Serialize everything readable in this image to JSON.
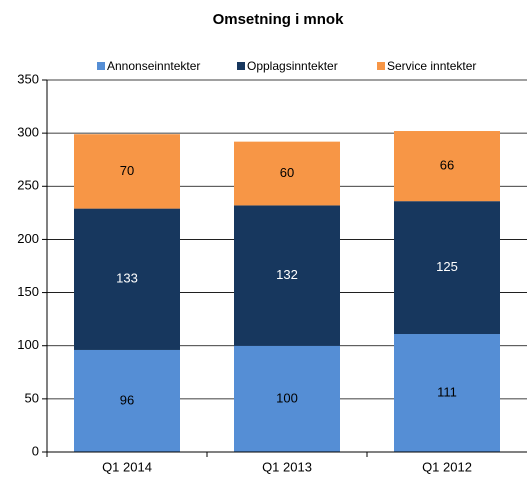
{
  "chart_data": {
    "type": "bar",
    "stacked": true,
    "title": "Omsetning i mnok",
    "categories": [
      "Q1 2014",
      "Q1 2013",
      "Q1 2012"
    ],
    "series": [
      {
        "name": "Annonseinntekter",
        "color": "#558ed5",
        "values": [
          96,
          100,
          111
        ]
      },
      {
        "name": "Opplagsinntekter",
        "color": "#17375e",
        "values": [
          133,
          132,
          125
        ]
      },
      {
        "name": "Service inntekter",
        "color": "#f79646",
        "values": [
          70,
          60,
          66
        ]
      }
    ],
    "ylim": [
      0,
      350
    ],
    "yticks": [
      0,
      50,
      100,
      150,
      200,
      250,
      300,
      350
    ],
    "grid": true,
    "legend": "top"
  }
}
